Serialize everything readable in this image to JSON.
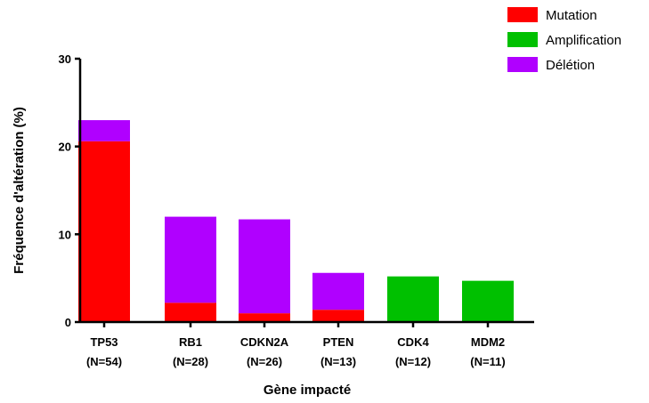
{
  "chart_data": {
    "type": "bar",
    "stacked": true,
    "categories": [
      "TP53",
      "RB1",
      "CDKN2A",
      "PTEN",
      "CDK4",
      "MDM2"
    ],
    "category_sublabels": [
      "(N=54)",
      "(N=28)",
      "(N=26)",
      "(N=13)",
      "(N=12)",
      "(N=11)"
    ],
    "series": [
      {
        "name": "Mutation",
        "color": "#ff0000",
        "values": [
          20.6,
          2.2,
          1.0,
          1.4,
          0,
          0
        ]
      },
      {
        "name": "Amplification",
        "color": "#00c000",
        "values": [
          0,
          0,
          0,
          0,
          5.2,
          4.7
        ]
      },
      {
        "name": "Délétion",
        "color": "#b000ff",
        "values": [
          2.4,
          9.8,
          10.7,
          4.2,
          0,
          0
        ]
      }
    ],
    "xlabel": "Gène impacté",
    "ylabel": "Fréquence d'altération (%)",
    "ylim": [
      0,
      30
    ],
    "yticks": [
      0,
      10,
      20,
      30
    ],
    "legend_position": "top-right",
    "grid": false
  }
}
